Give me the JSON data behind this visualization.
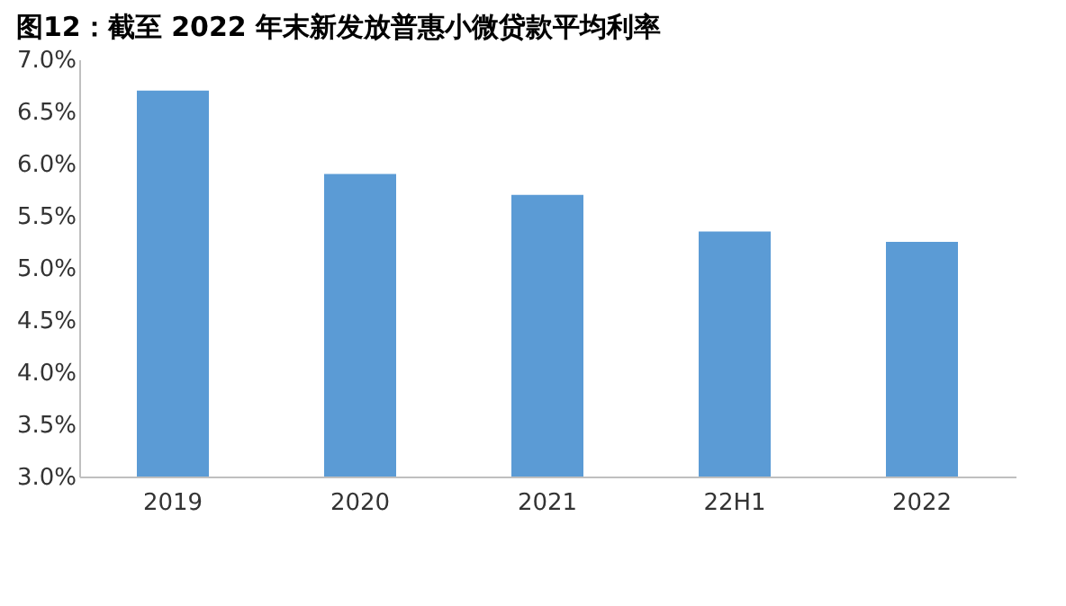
{
  "chart_data": {
    "type": "bar",
    "title": "图12：截至 2022 年末新发放普惠小微贷款平均利率",
    "categories": [
      "2019",
      "2020",
      "2021",
      "22H1",
      "2022"
    ],
    "values": [
      6.7,
      5.9,
      5.7,
      5.35,
      5.25
    ],
    "color": "#5b9bd5",
    "ylim": [
      3.0,
      7.0
    ],
    "yticks": [
      {
        "value": 3.0,
        "label": "3.0%"
      },
      {
        "value": 3.5,
        "label": "3.5%"
      },
      {
        "value": 4.0,
        "label": "4.0%"
      },
      {
        "value": 4.5,
        "label": "4.5%"
      },
      {
        "value": 5.0,
        "label": "5.0%"
      },
      {
        "value": 5.5,
        "label": "5.5%"
      },
      {
        "value": 6.0,
        "label": "6.0%"
      },
      {
        "value": 6.5,
        "label": "6.5%"
      },
      {
        "value": 7.0,
        "label": "7.0%"
      }
    ],
    "grid": false
  }
}
